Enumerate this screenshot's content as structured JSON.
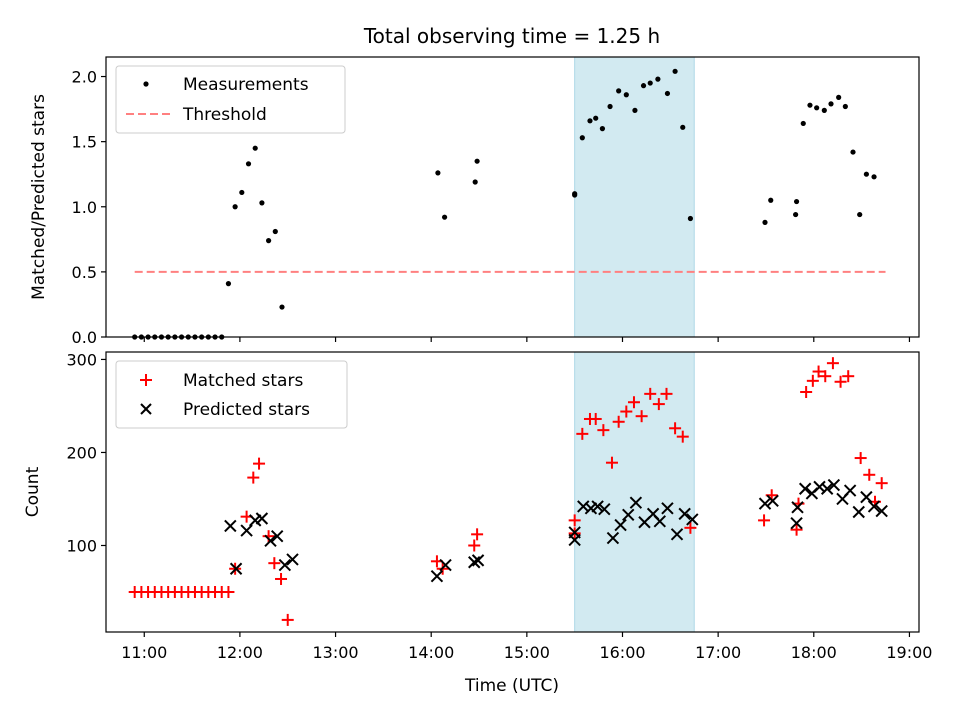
{
  "figure": {
    "title": "Total observing time = 1.25 h",
    "xlabel": "Time (UTC)",
    "xticks": [
      {
        "h": 11,
        "label": "11:00"
      },
      {
        "h": 12,
        "label": "12:00"
      },
      {
        "h": 13,
        "label": "13:00"
      },
      {
        "h": 14,
        "label": "14:00"
      },
      {
        "h": 15,
        "label": "15:00"
      },
      {
        "h": 16,
        "label": "16:00"
      },
      {
        "h": 17,
        "label": "17:00"
      },
      {
        "h": 18,
        "label": "18:00"
      },
      {
        "h": 19,
        "label": "19:00"
      }
    ],
    "xlim": [
      10.6,
      19.1
    ],
    "span": [
      15.5,
      16.75
    ],
    "span_color": "#add8e6",
    "colors": {
      "measurement": "#000000",
      "threshold": "#ff8080",
      "matched": "#ff0000",
      "predicted": "#000000"
    }
  },
  "chart_data": [
    {
      "type": "scatter",
      "panel": "top",
      "ylabel": "Matched/Predicted stars",
      "ylim": [
        0,
        2.15
      ],
      "yticks": [
        "0.0",
        "0.5",
        "1.0",
        "1.5",
        "2.0"
      ],
      "legend": {
        "placement": "top-left",
        "entries": [
          "Measurements",
          "Threshold"
        ]
      },
      "threshold": {
        "name": "Threshold",
        "y": 0.5,
        "x": [
          10.9,
          18.75
        ]
      },
      "series": [
        {
          "name": "Measurements",
          "x": [
            10.9,
            10.97,
            11.04,
            11.11,
            11.18,
            11.25,
            11.32,
            11.39,
            11.46,
            11.53,
            11.6,
            11.67,
            11.74,
            11.81,
            11.88,
            11.95,
            12.02,
            12.09,
            12.16,
            12.23,
            12.3,
            12.37,
            12.44,
            12.51,
            14.07,
            14.14,
            14.46,
            14.48,
            15.5,
            15.5,
            15.58,
            15.66,
            15.72,
            15.79,
            15.87,
            15.96,
            16.04,
            16.13,
            16.22,
            16.29,
            16.37,
            16.47,
            16.55,
            16.63,
            16.71,
            17.49,
            17.55,
            17.81,
            17.82,
            17.89,
            17.96,
            18.03,
            18.11,
            18.18,
            18.26,
            18.33,
            18.41,
            18.48,
            18.55,
            18.63,
            18.71
          ],
          "y": [
            0,
            0,
            0,
            0,
            0,
            0,
            0,
            0,
            0,
            0,
            0,
            0,
            0,
            0,
            0.41,
            1.0,
            1.11,
            1.33,
            1.45,
            1.03,
            0.74,
            0.81,
            0.23,
            null,
            1.26,
            0.92,
            1.19,
            1.35,
            1.09,
            1.1,
            1.53,
            1.66,
            1.68,
            1.6,
            1.77,
            1.89,
            1.86,
            1.74,
            1.93,
            1.95,
            1.98,
            1.87,
            2.04,
            1.61,
            0.91,
            0.88,
            1.05,
            0.94,
            1.04,
            1.64,
            1.78,
            1.76,
            1.74,
            1.79,
            1.84,
            1.77,
            1.42,
            0.94,
            1.25,
            1.23,
            null
          ]
        }
      ]
    },
    {
      "type": "scatter",
      "panel": "bottom",
      "ylabel": "Count",
      "ylim": [
        7,
        308
      ],
      "yticks": [
        "100",
        "200",
        "300"
      ],
      "legend": {
        "placement": "top-left",
        "entries": [
          "Matched stars",
          "Predicted stars"
        ]
      },
      "series": [
        {
          "name": "Matched stars",
          "x": [
            10.9,
            10.97,
            11.04,
            11.11,
            11.18,
            11.25,
            11.32,
            11.39,
            11.46,
            11.53,
            11.6,
            11.67,
            11.74,
            11.81,
            11.88,
            11.95,
            12.07,
            12.14,
            12.2,
            12.3,
            12.36,
            12.43,
            12.5,
            14.06,
            14.12,
            14.45,
            14.48,
            15.5,
            15.5,
            15.58,
            15.66,
            15.72,
            15.8,
            15.89,
            15.96,
            16.04,
            16.12,
            16.2,
            16.29,
            16.38,
            16.46,
            16.55,
            16.63,
            16.71,
            17.48,
            17.56,
            17.82,
            17.84,
            17.92,
            17.99,
            18.05,
            18.12,
            18.2,
            18.28,
            18.36,
            18.49,
            18.58,
            18.64,
            18.71
          ],
          "y": [
            50,
            50,
            50,
            50,
            50,
            50,
            50,
            50,
            50,
            50,
            50,
            50,
            50,
            50,
            50,
            75,
            131,
            173,
            188,
            110,
            81,
            64,
            20,
            83,
            75,
            100,
            112,
            127,
            113,
            220,
            236,
            236,
            224,
            189,
            233,
            244,
            254,
            239,
            263,
            252,
            263,
            226,
            217,
            119,
            127,
            154,
            117,
            145,
            265,
            277,
            287,
            282,
            296,
            276,
            282,
            194,
            176,
            147,
            167
          ]
        },
        {
          "name": "Predicted stars",
          "x": [
            11.9,
            11.96,
            12.07,
            12.16,
            12.23,
            12.32,
            12.39,
            12.47,
            12.55,
            14.06,
            14.15,
            14.45,
            14.49,
            15.5,
            15.5,
            15.59,
            15.67,
            15.74,
            15.81,
            15.9,
            15.98,
            16.06,
            16.14,
            16.23,
            16.32,
            16.39,
            16.47,
            16.57,
            16.65,
            16.73,
            17.49,
            17.57,
            17.82,
            17.83,
            17.91,
            17.98,
            18.06,
            18.14,
            18.21,
            18.3,
            18.38,
            18.47,
            18.55,
            18.63,
            18.71
          ],
          "y": [
            121,
            75,
            116,
            127,
            129,
            105,
            110,
            79,
            85,
            67,
            79,
            82,
            84,
            106,
            114,
            142,
            140,
            142,
            139,
            108,
            122,
            133,
            146,
            125,
            134,
            126,
            140,
            112,
            134,
            128,
            145,
            148,
            124,
            141,
            161,
            156,
            163,
            161,
            165,
            150,
            159,
            136,
            152,
            142,
            137
          ]
        }
      ]
    }
  ]
}
